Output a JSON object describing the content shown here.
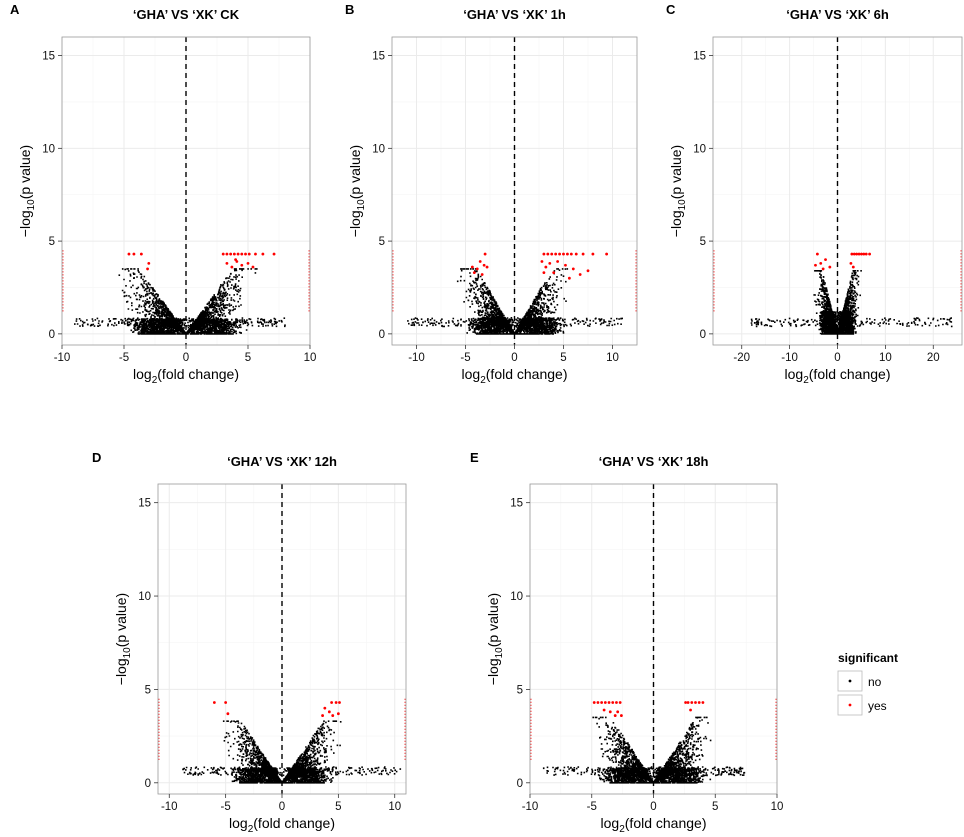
{
  "colors": {
    "no": "#000000",
    "yes": "#ff0000",
    "grid_major": "#ebebeb",
    "grid_minor": "#f5f5f5",
    "frame": "#999999"
  },
  "axis_text": {
    "xlabel_main": "log",
    "xlabel_sub": "2",
    "xlabel_rest": "(fold change)",
    "ylabel_main": "−log",
    "ylabel_sub": "10",
    "ylabel_rest": "(p value)"
  },
  "legend": {
    "title": "significant",
    "items": [
      {
        "key": "no",
        "label": "no"
      },
      {
        "key": "yes",
        "label": "yes"
      }
    ]
  },
  "chart_data": [
    {
      "type": "scatter",
      "panel": "A",
      "title": "‘GHA’ VS ‘XK’     CK",
      "xlabel": "log2(fold change)",
      "ylabel": "−log10(p value)",
      "xlim": [
        -10,
        10
      ],
      "ylim": [
        -0.6,
        16
      ],
      "xticks": [
        -10,
        -5,
        0,
        5,
        10
      ],
      "yticks": [
        0,
        5,
        10,
        15
      ],
      "vline": 0,
      "spread": 0.6,
      "cluster": 3.5,
      "peak": 3.3,
      "xmin": -9,
      "xmax": 8,
      "sig": [
        [
          -4.6,
          4.3
        ],
        [
          -4.2,
          4.3
        ],
        [
          -3.6,
          4.3
        ],
        [
          -3.0,
          3.8
        ],
        [
          -3.1,
          3.5
        ],
        [
          3.0,
          4.3
        ],
        [
          3.3,
          4.3
        ],
        [
          3.6,
          4.3
        ],
        [
          3.9,
          4.3
        ],
        [
          4.2,
          4.3
        ],
        [
          4.5,
          4.3
        ],
        [
          4.8,
          4.3
        ],
        [
          5.1,
          4.3
        ],
        [
          5.6,
          4.3
        ],
        [
          6.2,
          4.3
        ],
        [
          7.1,
          4.3
        ],
        [
          3.3,
          3.8
        ],
        [
          3.7,
          3.6
        ],
        [
          4.1,
          3.9
        ],
        [
          4.5,
          3.7
        ],
        [
          5.0,
          3.8
        ],
        [
          5.4,
          3.6
        ],
        [
          4.0,
          4.0
        ]
      ]
    },
    {
      "type": "scatter",
      "panel": "B",
      "title": "‘GHA’ VS ‘XK’     1h",
      "xlabel": "log2(fold change)",
      "ylabel": "−log10(p value)",
      "xlim": [
        -12.5,
        12.5
      ],
      "ylim": [
        -0.6,
        16
      ],
      "xticks": [
        -10,
        -5,
        0,
        5,
        10
      ],
      "yticks": [
        0,
        5,
        10,
        15
      ],
      "vline": 0,
      "spread": 0.65,
      "cluster": 3.6,
      "peak": 3.3,
      "xmin": -11,
      "xmax": 11,
      "sig": [
        [
          -3.0,
          4.3
        ],
        [
          -3.5,
          3.9
        ],
        [
          -3.1,
          3.7
        ],
        [
          -3.8,
          3.5
        ],
        [
          -4.1,
          3.3
        ],
        [
          -2.8,
          3.6
        ],
        [
          -3.3,
          3.2
        ],
        [
          -4.3,
          3.6
        ],
        [
          3.0,
          4.3
        ],
        [
          3.4,
          4.3
        ],
        [
          3.8,
          4.3
        ],
        [
          4.2,
          4.3
        ],
        [
          4.6,
          4.3
        ],
        [
          5.0,
          4.3
        ],
        [
          5.4,
          4.3
        ],
        [
          5.8,
          4.3
        ],
        [
          6.3,
          4.3
        ],
        [
          7.0,
          4.3
        ],
        [
          8.0,
          4.3
        ],
        [
          9.4,
          4.3
        ],
        [
          2.8,
          3.9
        ],
        [
          3.2,
          3.6
        ],
        [
          3.6,
          3.8
        ],
        [
          4.0,
          3.3
        ],
        [
          4.4,
          3.9
        ],
        [
          5.2,
          3.7
        ],
        [
          6.0,
          3.5
        ],
        [
          6.7,
          3.2
        ],
        [
          7.5,
          3.4
        ],
        [
          5.6,
          3.0
        ],
        [
          3.0,
          3.3
        ]
      ]
    },
    {
      "type": "scatter",
      "panel": "C",
      "title": "‘GHA’ VS ‘XK’     6h",
      "xlabel": "log2(fold change)",
      "ylabel": "−log10(p value)",
      "xlim": [
        -26,
        26
      ],
      "ylim": [
        -0.6,
        16
      ],
      "xticks": [
        -20,
        -10,
        0,
        10,
        20
      ],
      "yticks": [
        0,
        5,
        10,
        15
      ],
      "vline": 0,
      "spread": 0.9,
      "cluster": 3.0,
      "peak": 3.2,
      "xmin": -18,
      "xmax": 24,
      "sig": [
        [
          -4.2,
          4.3
        ],
        [
          -2.5,
          4.0
        ],
        [
          -3.5,
          3.8
        ],
        [
          -4.6,
          3.7
        ],
        [
          -3.0,
          3.5
        ],
        [
          -1.6,
          3.6
        ],
        [
          3.0,
          4.3
        ],
        [
          3.5,
          4.3
        ],
        [
          4.0,
          4.3
        ],
        [
          4.5,
          4.3
        ],
        [
          5.0,
          4.3
        ],
        [
          5.5,
          4.3
        ],
        [
          6.0,
          4.3
        ],
        [
          6.7,
          4.3
        ],
        [
          2.8,
          3.8
        ],
        [
          3.3,
          3.6
        ]
      ]
    },
    {
      "type": "scatter",
      "panel": "D",
      "title": "‘GHA’ VS ‘XK’     12h",
      "xlabel": "log2(fold change)",
      "ylabel": "−log10(p value)",
      "xlim": [
        -11,
        11
      ],
      "ylim": [
        -0.6,
        16
      ],
      "xticks": [
        -10,
        -5,
        0,
        5,
        10
      ],
      "yticks": [
        0,
        5,
        10,
        15
      ],
      "vline": 0,
      "spread": 0.6,
      "cluster": 3.4,
      "peak": 3.1,
      "xmin": -8.8,
      "xmax": 10.5,
      "sig": [
        [
          -6.0,
          4.3
        ],
        [
          -5.0,
          4.3
        ],
        [
          -4.8,
          3.7
        ],
        [
          4.4,
          4.3
        ],
        [
          4.8,
          4.3
        ],
        [
          5.1,
          4.3
        ],
        [
          3.8,
          4.0
        ],
        [
          4.2,
          3.8
        ],
        [
          4.5,
          3.6
        ],
        [
          3.6,
          3.6
        ],
        [
          5.0,
          3.7
        ]
      ]
    },
    {
      "type": "scatter",
      "panel": "E",
      "title": "‘GHA’ VS ‘XK’     18h",
      "xlabel": "log2(fold change)",
      "ylabel": "−log10(p value)",
      "xlim": [
        -10,
        10
      ],
      "ylim": [
        -0.6,
        16
      ],
      "xticks": [
        -10,
        -5,
        0,
        5,
        10
      ],
      "yticks": [
        0,
        5,
        10,
        15
      ],
      "vline": 0,
      "spread": 0.6,
      "cluster": 3.2,
      "peak": 3.3,
      "xmin": -9,
      "xmax": 7.5,
      "sig": [
        [
          -4.8,
          4.3
        ],
        [
          -4.5,
          4.3
        ],
        [
          -4.2,
          4.3
        ],
        [
          -3.9,
          4.3
        ],
        [
          -3.6,
          4.3
        ],
        [
          -3.3,
          4.3
        ],
        [
          -3.0,
          4.3
        ],
        [
          -2.7,
          4.3
        ],
        [
          -3.5,
          3.8
        ],
        [
          -3.1,
          3.6
        ],
        [
          -2.9,
          3.8
        ],
        [
          -2.6,
          3.6
        ],
        [
          -4.0,
          3.9
        ],
        [
          2.8,
          4.3
        ],
        [
          3.1,
          4.3
        ],
        [
          3.4,
          4.3
        ],
        [
          3.7,
          4.3
        ],
        [
          4.0,
          4.3
        ],
        [
          2.6,
          4.3
        ],
        [
          3.0,
          3.9
        ]
      ]
    }
  ]
}
